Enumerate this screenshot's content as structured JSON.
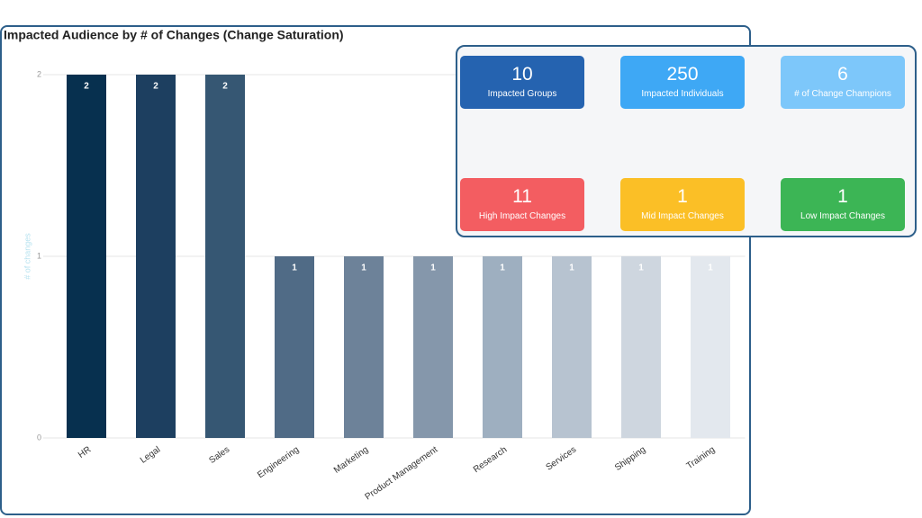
{
  "chart_data": {
    "type": "bar",
    "title": "Impacted Audience by # of Changes (Change Saturation)",
    "y_label": "# of changes",
    "categories": [
      "HR",
      "Legal",
      "Sales",
      "Engineering",
      "Marketing",
      "Product Management",
      "Research",
      "Services",
      "Shipping",
      "Training"
    ],
    "values": [
      2,
      2,
      2,
      1,
      1,
      1,
      1,
      1,
      1,
      1
    ],
    "colors": [
      "#07304f",
      "#1d3f60",
      "#365773",
      "#506b86",
      "#6d8299",
      "#8597ab",
      "#9eafc0",
      "#b7c3d0",
      "#ced6df",
      "#e3e8ee"
    ],
    "ylim": [
      0,
      2
    ],
    "yticks": [
      0,
      1,
      2
    ],
    "grid": true
  },
  "kpi_cards": [
    {
      "value": 10,
      "label": "Impacted Groups",
      "color": "#2563b0"
    },
    {
      "value": 250,
      "label": "Impacted Individuals",
      "color": "#3ea8f5"
    },
    {
      "value": 6,
      "label": "# of Change Champions",
      "color": "#7dc7fa"
    },
    {
      "value": 11,
      "label": "High Impact Changes",
      "color": "#f35d61"
    },
    {
      "value": 1,
      "label": "Mid Impact Changes",
      "color": "#fbbf26"
    },
    {
      "value": 1,
      "label": "Low Impact Changes",
      "color": "#3cb555"
    }
  ]
}
